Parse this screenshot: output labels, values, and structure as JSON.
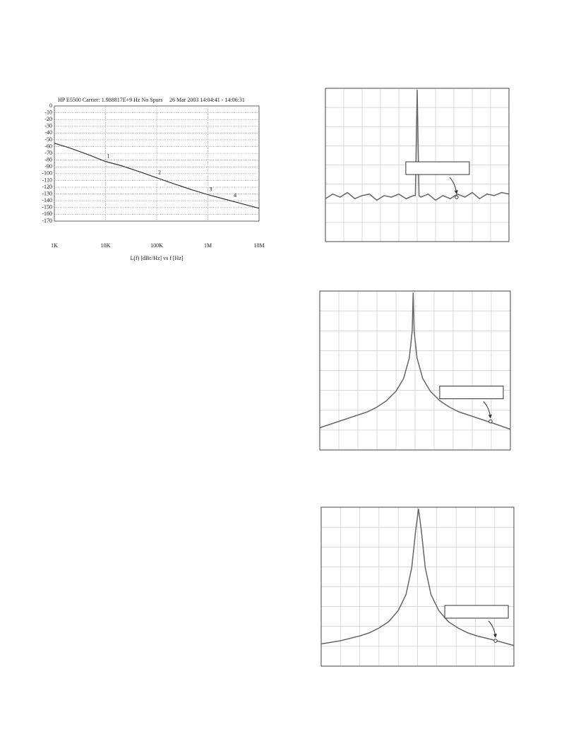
{
  "chart_data": [
    {
      "type": "line",
      "title": "HP E5500   Carrier: 1.988817E+9 Hz   No Spurs",
      "subtitle": "26 Mar 2003  14:04:41 - 14:06:31",
      "x_label": "L(f)  [dBc/Hz]  vs  f  [Hz]",
      "log_x": true,
      "grid": true,
      "xlim": [
        1000,
        10000000
      ],
      "xticks": [
        {
          "value": 1000,
          "label": "1K"
        },
        {
          "value": 10000,
          "label": "10K"
        },
        {
          "value": 100000,
          "label": "100K"
        },
        {
          "value": 1000000,
          "label": "1M"
        },
        {
          "value": 10000000,
          "label": "10M"
        }
      ],
      "ylim": [
        -170,
        0
      ],
      "yticks": [
        0,
        -10,
        -20,
        -30,
        -40,
        -50,
        -60,
        -70,
        -80,
        -90,
        -100,
        -110,
        -120,
        -130,
        -140,
        -150,
        -160,
        -170
      ],
      "x": [
        1000,
        2000,
        5000,
        10000,
        20000,
        50000,
        100000,
        200000,
        500000,
        1000000,
        2000000,
        5000000,
        10000000
      ],
      "series": [
        {
          "name": "L(f)",
          "color": "#333333",
          "values": [
            -55,
            -62,
            -73,
            -82,
            -88,
            -98,
            -106,
            -114,
            -124,
            -131,
            -137,
            -145,
            -151
          ]
        }
      ],
      "annotations": [
        {
          "label": "1",
          "x": 10000,
          "value": -82
        },
        {
          "label": "2",
          "x": 100000,
          "value": -106
        },
        {
          "label": "3",
          "x": 1000000,
          "value": -131
        },
        {
          "label": "4",
          "x": 3000000,
          "value": -140
        }
      ]
    },
    {
      "type": "spectrum",
      "grid": true,
      "xlim": [
        0,
        100
      ],
      "ylim": [
        0,
        100
      ],
      "x": [
        0,
        4,
        8,
        12,
        16,
        20,
        24,
        28,
        32,
        36,
        40,
        44,
        48,
        49,
        50,
        51,
        52,
        56,
        60,
        64,
        68,
        72,
        76,
        80,
        84,
        88,
        92,
        96,
        100
      ],
      "series": [
        {
          "color": "#666666",
          "values": [
            28,
            31,
            29,
            32,
            28,
            30,
            31,
            27,
            30,
            29,
            31,
            28,
            30,
            30,
            99,
            30,
            29,
            31,
            27,
            30,
            28,
            31,
            29,
            32,
            28,
            31,
            30,
            32,
            31
          ]
        }
      ],
      "marker": {
        "x": 71.5,
        "value": 29
      }
    },
    {
      "type": "spectrum",
      "grid": true,
      "xlim": [
        0,
        100
      ],
      "ylim": [
        0,
        100
      ],
      "x": [
        0,
        5,
        10,
        15,
        20,
        25,
        30,
        35,
        40,
        44,
        47,
        48.5,
        49,
        49.5,
        51,
        54,
        58,
        63,
        68,
        73,
        78,
        83,
        88,
        93,
        100
      ],
      "series": [
        {
          "color": "#666666",
          "values": [
            14,
            16,
            18,
            20,
            22,
            24,
            27,
            31,
            37,
            45,
            58,
            75,
            99,
            75,
            58,
            45,
            37,
            31,
            27,
            24,
            22,
            20,
            18,
            16,
            13
          ]
        }
      ],
      "marker": {
        "x": 89.6,
        "value": 18
      }
    },
    {
      "type": "spectrum",
      "grid": true,
      "xlim": [
        0,
        100
      ],
      "ylim": [
        0,
        100
      ],
      "x": [
        0,
        10,
        20,
        25,
        30,
        35,
        40,
        44,
        47,
        49,
        50.5,
        52,
        54,
        57,
        61,
        66,
        71,
        76,
        81,
        91,
        100
      ],
      "series": [
        {
          "color": "#666666",
          "values": [
            14,
            16,
            19,
            21,
            24,
            28,
            35,
            45,
            62,
            85,
            99,
            85,
            62,
            45,
            35,
            28,
            24,
            21,
            19,
            16,
            13
          ]
        }
      ],
      "marker": {
        "x": 90.5,
        "value": 16
      }
    }
  ]
}
